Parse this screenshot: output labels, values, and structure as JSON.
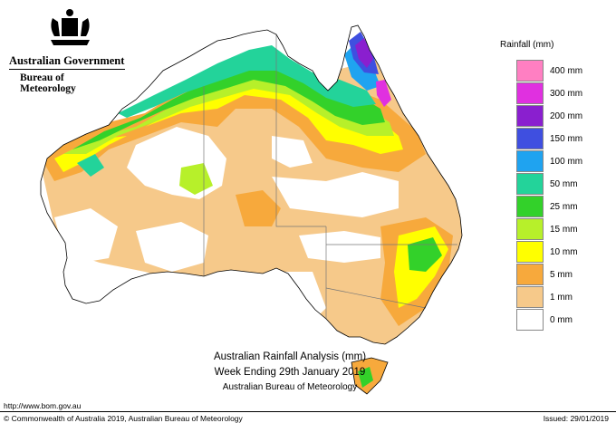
{
  "header": {
    "government": "Australian Government",
    "bureau": "Bureau of Meteorology"
  },
  "legend": {
    "title": "Rainfall (mm)",
    "items": [
      {
        "label": "400 mm",
        "color": "#ff7fc2"
      },
      {
        "label": "300 mm",
        "color": "#e030e0"
      },
      {
        "label": "200 mm",
        "color": "#8a1fcf"
      },
      {
        "label": "150 mm",
        "color": "#3f4fe0"
      },
      {
        "label": "100 mm",
        "color": "#1fa3f0"
      },
      {
        "label": "50 mm",
        "color": "#23d39a"
      },
      {
        "label": "25 mm",
        "color": "#33d12a"
      },
      {
        "label": "15 mm",
        "color": "#b7f02a"
      },
      {
        "label": "10 mm",
        "color": "#ffff00"
      },
      {
        "label": "5 mm",
        "color": "#f7a93c"
      },
      {
        "label": "1 mm",
        "color": "#f6c98a"
      },
      {
        "label": "0 mm",
        "color": "#ffffff"
      }
    ]
  },
  "caption": {
    "line1": "Australian Rainfall Analysis (mm)",
    "line2": "Week Ending 29th January 2019",
    "line3": "Australian Bureau of Meteorology"
  },
  "footer": {
    "url": "http://www.bom.gov.au",
    "copyright": "© Commonwealth of Australia 2019, Australian Bureau of Meteorology",
    "issued": "Issued: 29/01/2019"
  }
}
